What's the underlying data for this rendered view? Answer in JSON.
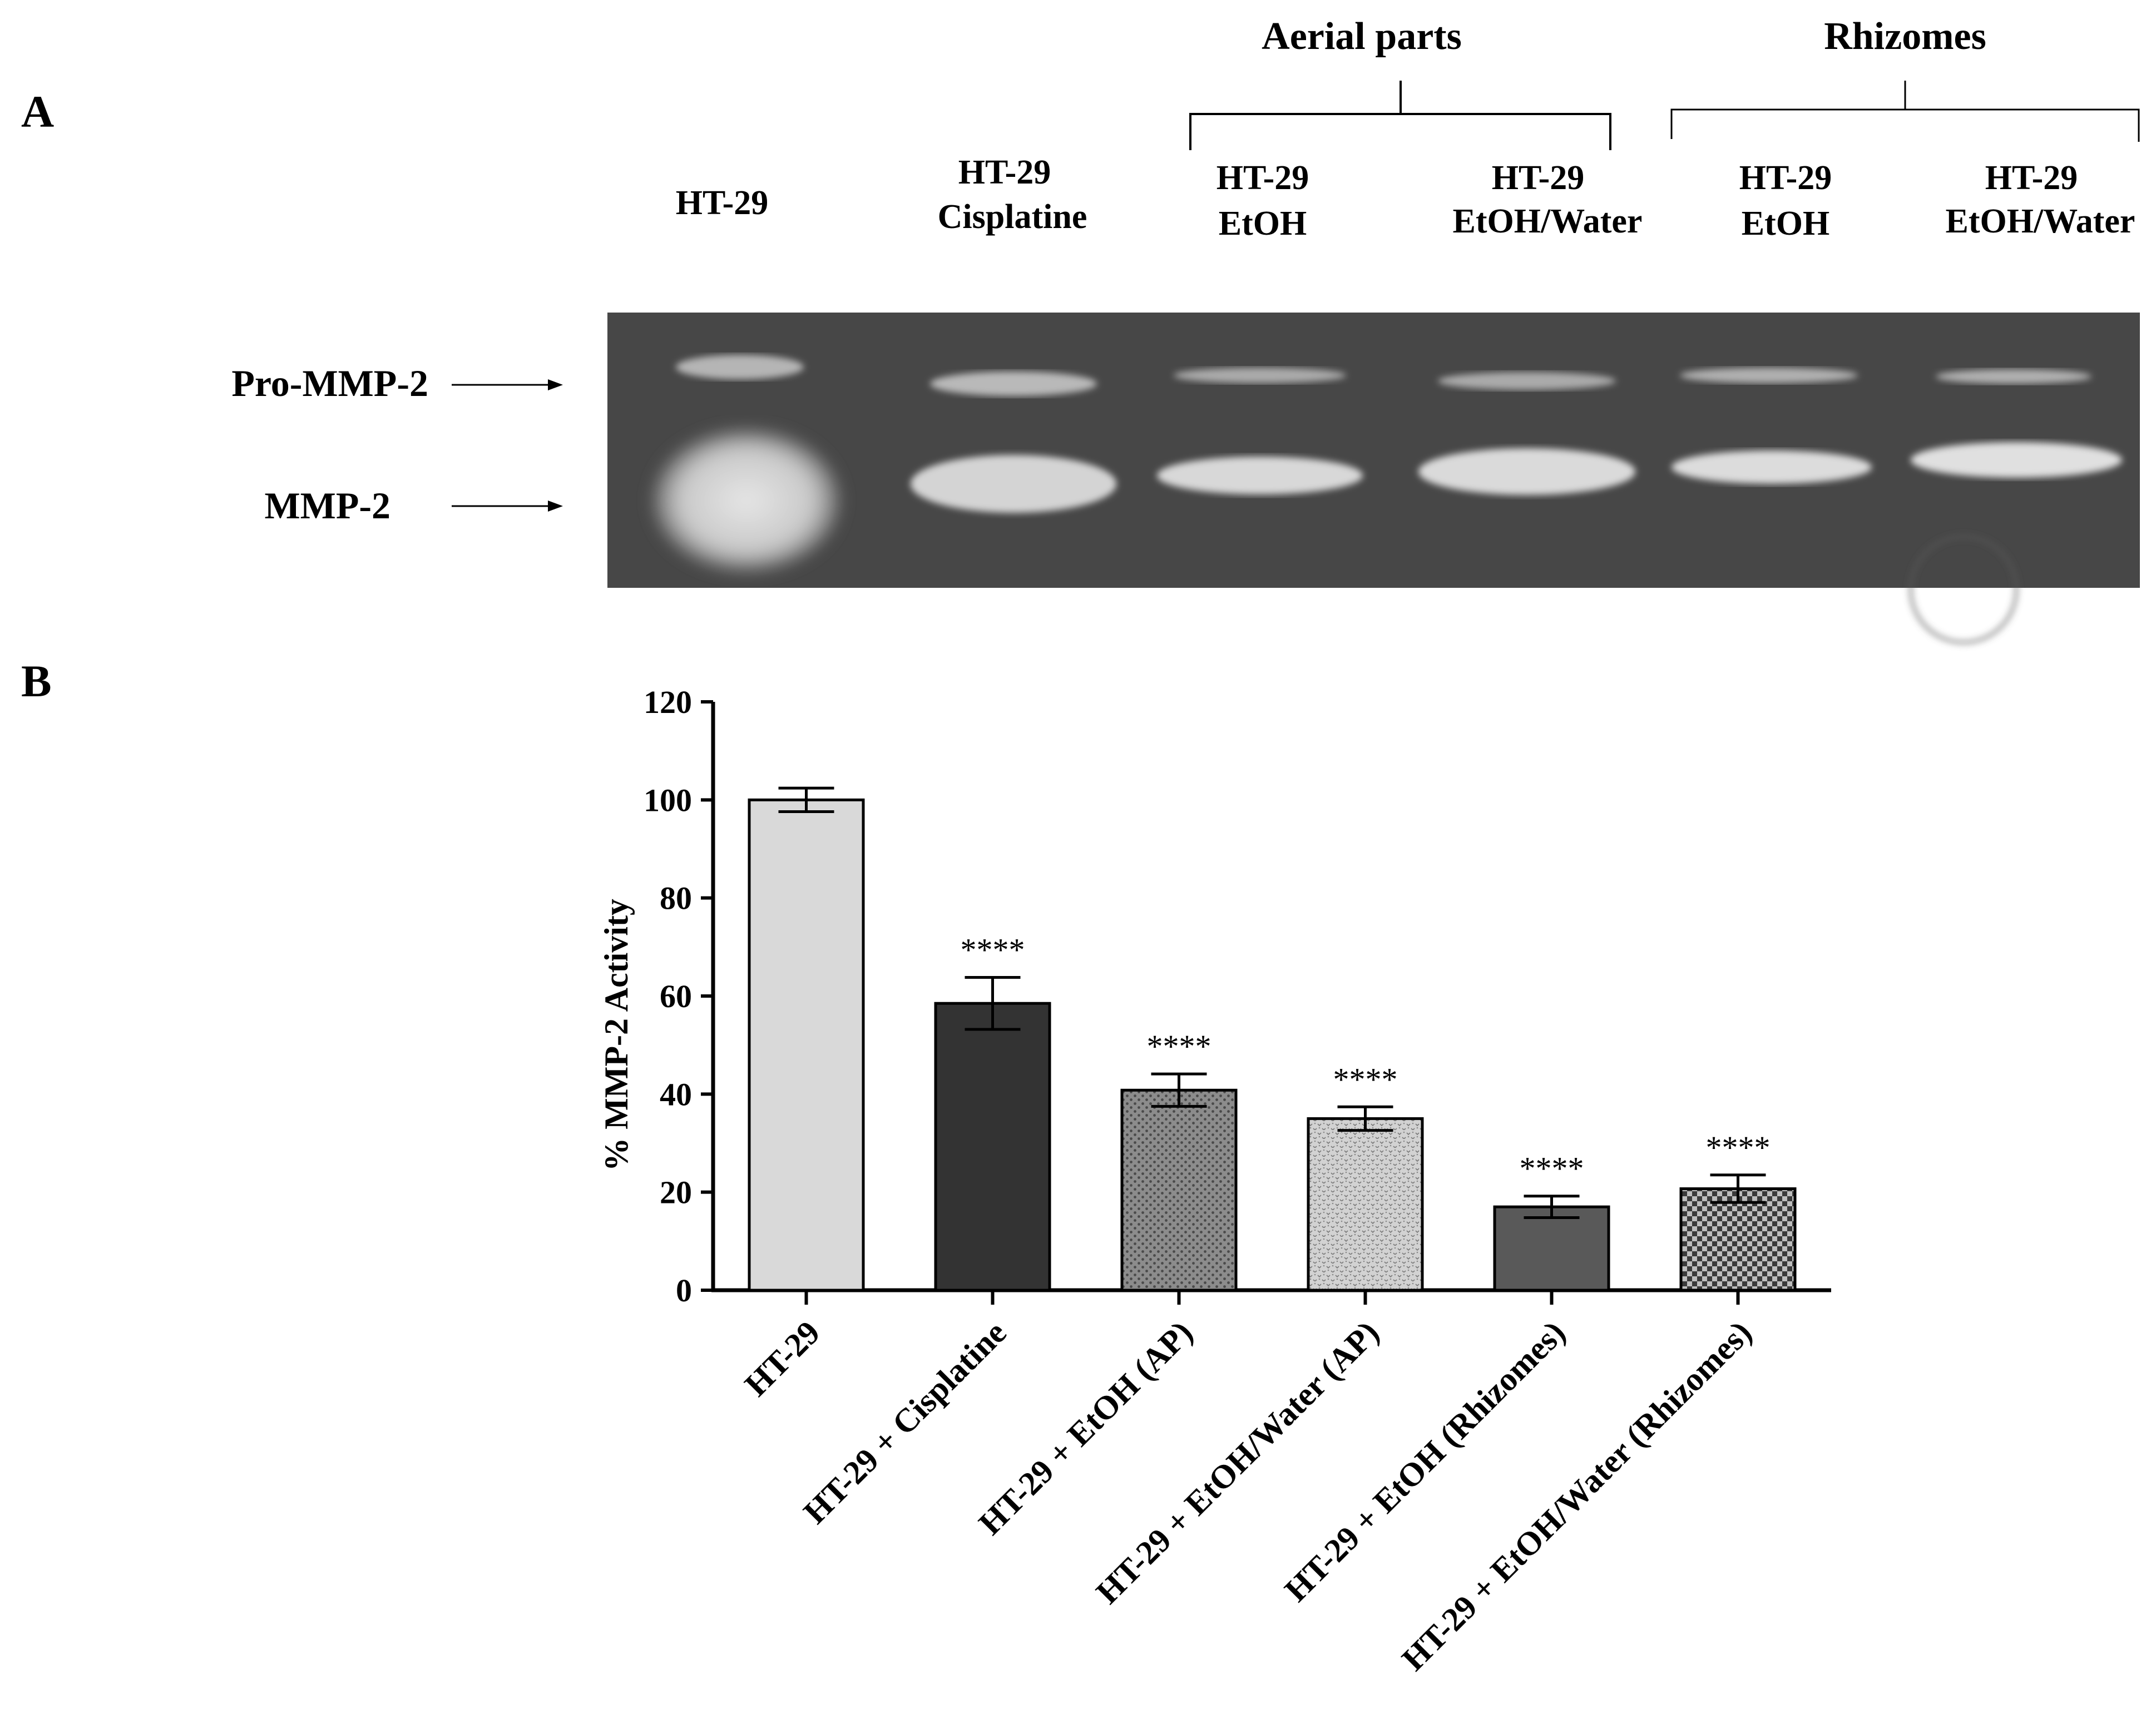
{
  "panel_a": {
    "letter": "A",
    "group_labels": [
      "Aerial parts",
      "Rhizomes"
    ],
    "lane_labels": [
      {
        "line1": "HT-29",
        "line2": ""
      },
      {
        "line1": "HT-29",
        "line2": "Cisplatine"
      },
      {
        "line1": "HT-29",
        "line2": "EtOH"
      },
      {
        "line1": "HT-29",
        "line2": "EtOH/Water"
      },
      {
        "line1": "HT-29",
        "line2": "EtOH"
      },
      {
        "line1": "HT-29",
        "line2": "EtOH/Water"
      }
    ],
    "band_labels": [
      "Pro-MMP-2",
      "MMP-2"
    ]
  },
  "panel_b": {
    "letter": "B"
  },
  "chart_data": {
    "type": "bar",
    "categories": [
      "HT-29",
      "HT-29 + Cisplatine",
      "HT-29 + EtOH (AP)",
      "HT-29 + EtOH/Water (AP)",
      "HT-29 + EtOH (Rhizomes)",
      "HT-29 + EtOH/Water (Rhizomes)"
    ],
    "values": [
      100,
      58.5,
      40.8,
      35,
      17,
      20.7
    ],
    "errors": [
      2.4,
      5.3,
      3.3,
      2.4,
      2.2,
      2.8
    ],
    "significance": [
      "",
      "****",
      "****",
      "****",
      "****",
      "****"
    ],
    "bar_fills": [
      "#d9d9d9",
      "#333333",
      "pattern-dots-gray",
      "pattern-light-stipple",
      "#595959",
      "pattern-checker"
    ],
    "ylabel": "% MMP-2 Activity",
    "xlabel": "",
    "ylim": [
      0,
      120
    ],
    "yticks": [
      0,
      20,
      40,
      60,
      80,
      100,
      120
    ],
    "grid": false,
    "legend": "none"
  }
}
